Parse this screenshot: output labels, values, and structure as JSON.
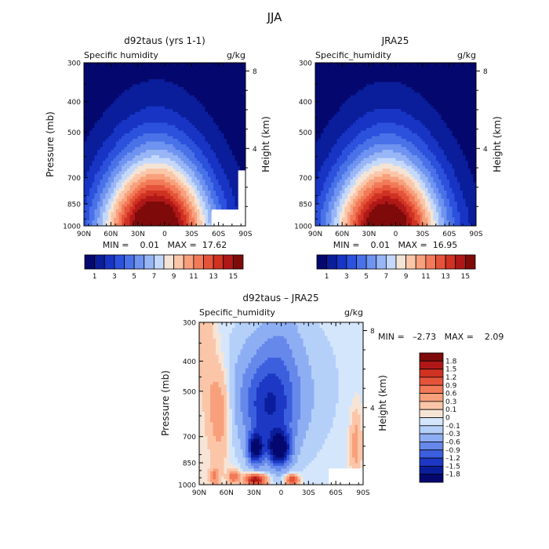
{
  "figure_title": "JJA",
  "chart_data": [
    {
      "type": "heatmap",
      "title": "d92taus (yrs 1-1)",
      "left_string": "Specific humidity",
      "right_string": "g/kg",
      "ylabel": "Pressure (mb)",
      "ylabel_right": "Height (km)",
      "x_ticks": [
        "90N",
        "60N",
        "30N",
        "0",
        "30S",
        "60S",
        "90S"
      ],
      "y_ticks": [
        300,
        400,
        500,
        700,
        850,
        1000
      ],
      "height_ticks": [
        8,
        4
      ],
      "ylim": [
        1000,
        300
      ],
      "stats": "MIN =    0.01   MAX =  17.62",
      "colorbar": {
        "labels": [
          "1",
          "3",
          "5",
          "7",
          "9",
          "11",
          "13",
          "15"
        ],
        "colors": [
          "#04086e",
          "#0a1d9a",
          "#1734c4",
          "#2c51dc",
          "#4a72e8",
          "#6e93f0",
          "#98b6f6",
          "#c4d8fb",
          "#f4e4d6",
          "#fbc6a8",
          "#f8a07c",
          "#f27a58",
          "#e5543a",
          "#d03222",
          "#b01818",
          "#7e0a0a"
        ]
      }
    },
    {
      "type": "heatmap",
      "title": "JRA25",
      "left_string": "Specific_humidity",
      "right_string": "g/kg",
      "ylabel": "Height (km)",
      "x_ticks": [
        "90N",
        "60N",
        "30N",
        "0",
        "30S",
        "60S",
        "90S"
      ],
      "y_ticks": [
        300,
        400,
        500,
        700,
        850,
        1000
      ],
      "height_ticks": [
        8,
        4
      ],
      "ylim": [
        1000,
        300
      ],
      "stats": "MIN =    0.01   MAX =  16.95",
      "colorbar": {
        "labels": [
          "1",
          "3",
          "5",
          "7",
          "9",
          "11",
          "13",
          "15"
        ],
        "colors": [
          "#04086e",
          "#0a1d9a",
          "#1734c4",
          "#2c51dc",
          "#4a72e8",
          "#6e93f0",
          "#98b6f6",
          "#c4d8fb",
          "#f4e4d6",
          "#fbc6a8",
          "#f8a07c",
          "#f27a58",
          "#e5543a",
          "#d03222",
          "#b01818",
          "#7e0a0a"
        ]
      }
    },
    {
      "type": "heatmap",
      "title": "d92taus – JRA25",
      "left_string": "Specific_humidity",
      "right_string": "g/kg",
      "ylabel": "Pressure (mb)",
      "ylabel_right": "Height (km)",
      "x_ticks": [
        "90N",
        "60N",
        "30N",
        "0",
        "30S",
        "60S",
        "90S"
      ],
      "y_ticks": [
        300,
        400,
        500,
        700,
        850,
        1000
      ],
      "height_ticks": [
        8,
        4
      ],
      "ylim": [
        1000,
        300
      ],
      "stats": "MIN =   –2.73   MAX =    2.09",
      "colorbar": {
        "orientation": "vertical",
        "labels": [
          "1.8",
          "1.5",
          "1.2",
          "0.9",
          "0.6",
          "0.3",
          "0.1",
          "0",
          "–0.1",
          "–0.3",
          "–0.6",
          "–0.9",
          "–1.2",
          "–1.5",
          "–1.8"
        ],
        "colors": [
          "#7e0a0a",
          "#b01818",
          "#d03222",
          "#e5543a",
          "#f27a58",
          "#f8a07c",
          "#fbc6a8",
          "#f6e4d6",
          "#d4e6fc",
          "#b4d0f9",
          "#8eaef3",
          "#6688ea",
          "#3c5fde",
          "#1c38c4",
          "#0a1d9a",
          "#04086e"
        ]
      }
    }
  ]
}
